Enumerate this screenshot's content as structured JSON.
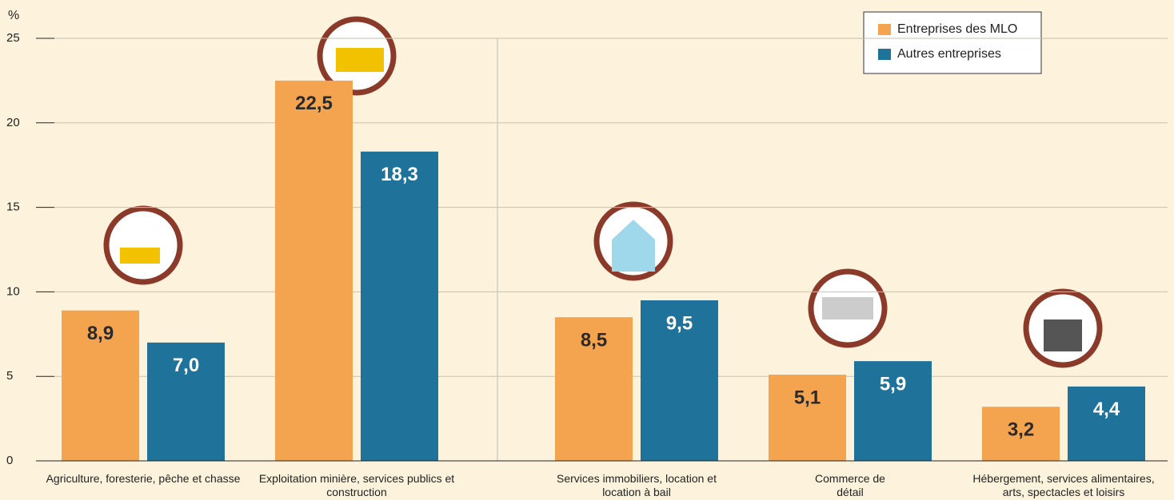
{
  "chart_data": {
    "type": "bar",
    "y_label": "%",
    "categories": [
      "Agriculture, foresterie, pêche et chasse",
      "Exploitation minière, services publics et construction",
      "Services immobiliers, location et location à bail",
      "Commerce de détail",
      "Hébergement, services alimentaires, arts, spectacles et loisirs"
    ],
    "series": [
      {
        "name": "Entreprises des MLO",
        "color": "#f4a44f",
        "values": [
          8.9,
          22.5,
          8.5,
          5.1,
          3.2
        ],
        "value_labels": [
          "8,9",
          "22,5",
          "8,5",
          "5,1",
          "3,2"
        ]
      },
      {
        "name": "Autres entreprises",
        "color": "#1f7299",
        "values": [
          7.0,
          18.3,
          9.5,
          5.9,
          4.4
        ],
        "value_labels": [
          "7,0",
          "18,3",
          "9,5",
          "5,9",
          "4,4"
        ]
      }
    ],
    "ylim": [
      0,
      25
    ],
    "yticks": [
      0,
      5,
      10,
      15,
      20,
      25
    ],
    "grid": true,
    "legend": "upper right"
  }
}
